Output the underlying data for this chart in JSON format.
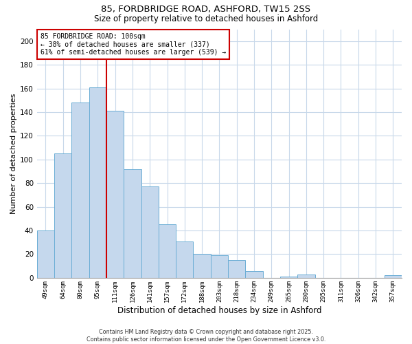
{
  "title": "85, FORDBRIDGE ROAD, ASHFORD, TW15 2SS",
  "subtitle": "Size of property relative to detached houses in Ashford",
  "xlabel": "Distribution of detached houses by size in Ashford",
  "ylabel": "Number of detached properties",
  "bar_labels": [
    "49sqm",
    "64sqm",
    "80sqm",
    "95sqm",
    "111sqm",
    "126sqm",
    "141sqm",
    "157sqm",
    "172sqm",
    "188sqm",
    "203sqm",
    "218sqm",
    "234sqm",
    "249sqm",
    "265sqm",
    "280sqm",
    "295sqm",
    "311sqm",
    "326sqm",
    "342sqm",
    "357sqm"
  ],
  "bar_values": [
    40,
    105,
    148,
    161,
    141,
    92,
    77,
    45,
    31,
    20,
    19,
    15,
    6,
    0,
    1,
    3,
    0,
    0,
    0,
    0,
    2
  ],
  "bar_color": "#c5d8ed",
  "bar_edge_color": "#6aadd5",
  "property_line_color": "#cc0000",
  "annotation_text": "85 FORDBRIDGE ROAD: 100sqm\n← 38% of detached houses are smaller (337)\n61% of semi-detached houses are larger (539) →",
  "annotation_box_color": "#cc0000",
  "ylim": [
    0,
    210
  ],
  "yticks": [
    0,
    20,
    40,
    60,
    80,
    100,
    120,
    140,
    160,
    180,
    200
  ],
  "footer_line1": "Contains HM Land Registry data © Crown copyright and database right 2025.",
  "footer_line2": "Contains public sector information licensed under the Open Government Licence v3.0.",
  "background_color": "#ffffff",
  "grid_color": "#c8d8ea"
}
